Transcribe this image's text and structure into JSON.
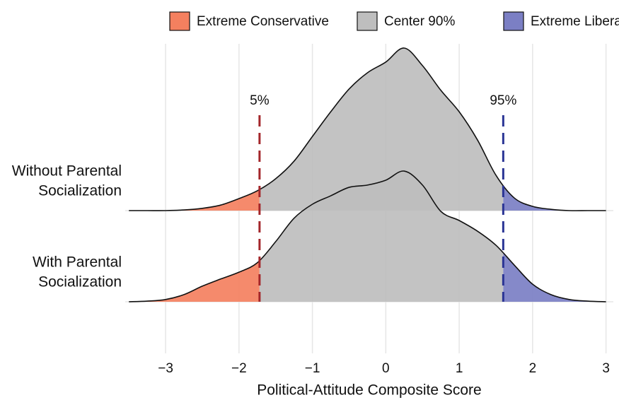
{
  "chart_data": {
    "type": "ridgeline",
    "x_label": "Political-Attitude Composite Score",
    "categories": [
      [
        "Without Parental",
        "Socialization"
      ],
      [
        "With Parental",
        "Socialization"
      ]
    ],
    "x": [
      -3.5,
      -3.25,
      -3,
      -2.75,
      -2.5,
      -2.25,
      -2,
      -1.75,
      -1.5,
      -1.25,
      -1,
      -0.75,
      -0.5,
      -0.25,
      0,
      0.25,
      0.5,
      0.75,
      1,
      1.25,
      1.5,
      1.75,
      2,
      2.25,
      2.5,
      2.75,
      3
    ],
    "densities": [
      [
        0,
        0,
        0,
        0.002,
        0.007,
        0.017,
        0.037,
        0.061,
        0.098,
        0.152,
        0.228,
        0.304,
        0.374,
        0.424,
        0.457,
        0.5,
        0.446,
        0.37,
        0.304,
        0.217,
        0.109,
        0.039,
        0.013,
        0.004,
        0,
        0,
        0
      ],
      [
        0,
        0.002,
        0.007,
        0.022,
        0.048,
        0.07,
        0.091,
        0.12,
        0.185,
        0.257,
        0.3,
        0.326,
        0.352,
        0.359,
        0.374,
        0.402,
        0.359,
        0.278,
        0.25,
        0.217,
        0.174,
        0.113,
        0.054,
        0.022,
        0.007,
        0.002,
        0
      ]
    ],
    "regions": [
      {
        "name": "Extreme Conservative",
        "color": "#f4805f"
      },
      {
        "name": "Center 90%",
        "color": "#bebebe"
      },
      {
        "name": "Extreme Liberal",
        "color": "#7b7fc4"
      }
    ],
    "reference_lines": [
      {
        "label": "5%",
        "value": -1.72,
        "color": "#a3262a"
      },
      {
        "label": "95%",
        "value": 1.6,
        "color": "#2b3595"
      }
    ],
    "xlim": [
      -3.55,
      3.1
    ],
    "xticks": [
      {
        "value": -3,
        "label": "−3"
      },
      {
        "value": -2,
        "label": "−2"
      },
      {
        "value": -1,
        "label": "−1"
      },
      0,
      1,
      2,
      3
    ],
    "grid": true,
    "legend": "top"
  }
}
